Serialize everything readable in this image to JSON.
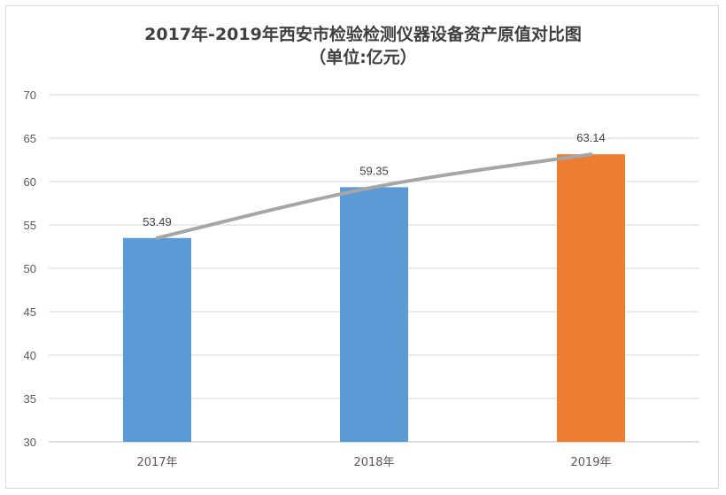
{
  "chart_data": {
    "type": "bar",
    "title": "2017年-2019年西安市检验检测仪器设备资产原值对比图",
    "subtitle": "（单位:亿元）",
    "categories": [
      "2017年",
      "2018年",
      "2019年"
    ],
    "values": [
      53.49,
      59.35,
      63.14
    ],
    "data_labels": [
      "53.49",
      "59.35",
      "63.14"
    ],
    "bar_colors": [
      "#5b9bd5",
      "#5b9bd5",
      "#ed7d31"
    ],
    "trend_line": {
      "type": "line",
      "values": [
        53.49,
        59.35,
        63.14
      ],
      "color": "#a6a6a6"
    },
    "ylim": [
      30,
      70
    ],
    "yticks": [
      30,
      35,
      40,
      45,
      50,
      55,
      60,
      65,
      70
    ],
    "xlabel": "",
    "ylabel": "",
    "grid": true,
    "legend": "none"
  }
}
